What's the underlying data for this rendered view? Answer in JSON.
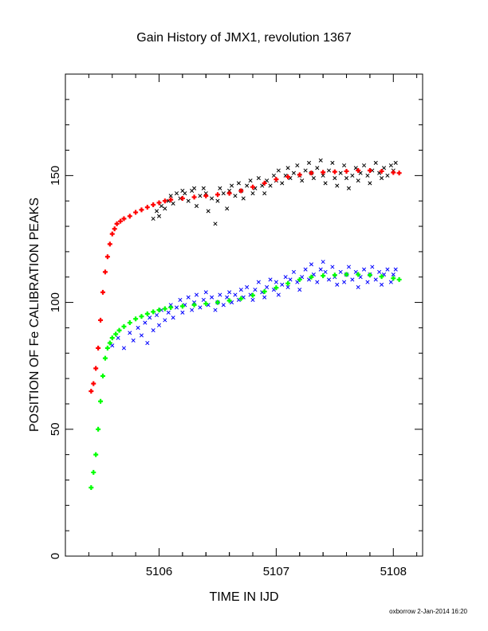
{
  "chart_data": {
    "type": "scatter",
    "title": "Gain History of JMX1, revolution 1367",
    "xlabel": "TIME IN IJD",
    "ylabel": "POSITION OF Fe CALIBRATION PEAKS",
    "xlim": [
      5105.2,
      5108.25
    ],
    "ylim": [
      0,
      190
    ],
    "xticks": [
      5106,
      5107,
      5108
    ],
    "yticks": [
      0,
      50,
      100,
      150
    ],
    "grid": false,
    "footer": "oxborrow  2-Jan-2014 16:20",
    "series": [
      {
        "role": "upper-peak-points",
        "marker": "x",
        "color": "#000000",
        "points": [
          [
            5105.95,
            133
          ],
          [
            5105.98,
            136
          ],
          [
            5106.0,
            134
          ],
          [
            5106.02,
            138
          ],
          [
            5106.05,
            137
          ],
          [
            5106.08,
            140
          ],
          [
            5106.1,
            142
          ],
          [
            5106.12,
            139
          ],
          [
            5106.15,
            143
          ],
          [
            5106.18,
            141
          ],
          [
            5106.2,
            144
          ],
          [
            5106.22,
            143
          ],
          [
            5106.25,
            140
          ],
          [
            5106.28,
            144
          ],
          [
            5106.3,
            145
          ],
          [
            5106.32,
            138
          ],
          [
            5106.35,
            142
          ],
          [
            5106.38,
            145
          ],
          [
            5106.4,
            143
          ],
          [
            5106.42,
            136
          ],
          [
            5106.45,
            141
          ],
          [
            5106.48,
            131
          ],
          [
            5106.5,
            140
          ],
          [
            5106.52,
            145
          ],
          [
            5106.55,
            143
          ],
          [
            5106.58,
            137
          ],
          [
            5106.6,
            144
          ],
          [
            5106.62,
            146
          ],
          [
            5106.65,
            142
          ],
          [
            5106.68,
            147
          ],
          [
            5106.7,
            144
          ],
          [
            5106.72,
            141
          ],
          [
            5106.75,
            146
          ],
          [
            5106.78,
            148
          ],
          [
            5106.8,
            143
          ],
          [
            5106.82,
            145
          ],
          [
            5106.85,
            149
          ],
          [
            5106.88,
            146
          ],
          [
            5106.9,
            143
          ],
          [
            5106.92,
            148
          ],
          [
            5106.95,
            146
          ],
          [
            5106.98,
            150
          ],
          [
            5107.0,
            148
          ],
          [
            5107.02,
            152
          ],
          [
            5107.05,
            147
          ],
          [
            5107.08,
            150
          ],
          [
            5107.1,
            153
          ],
          [
            5107.12,
            149
          ],
          [
            5107.15,
            151
          ],
          [
            5107.18,
            154
          ],
          [
            5107.2,
            150
          ],
          [
            5107.22,
            148
          ],
          [
            5107.25,
            152
          ],
          [
            5107.28,
            155
          ],
          [
            5107.3,
            151
          ],
          [
            5107.32,
            149
          ],
          [
            5107.35,
            153
          ],
          [
            5107.38,
            156
          ],
          [
            5107.4,
            150
          ],
          [
            5107.42,
            147
          ],
          [
            5107.45,
            152
          ],
          [
            5107.48,
            155
          ],
          [
            5107.5,
            149
          ],
          [
            5107.52,
            146
          ],
          [
            5107.55,
            151
          ],
          [
            5107.58,
            154
          ],
          [
            5107.6,
            149
          ],
          [
            5107.62,
            145
          ],
          [
            5107.65,
            150
          ],
          [
            5107.68,
            153
          ],
          [
            5107.7,
            148
          ],
          [
            5107.72,
            151
          ],
          [
            5107.75,
            154
          ],
          [
            5107.78,
            150
          ],
          [
            5107.8,
            147
          ],
          [
            5107.82,
            152
          ],
          [
            5107.85,
            155
          ],
          [
            5107.88,
            151
          ],
          [
            5107.9,
            149
          ],
          [
            5107.92,
            153
          ],
          [
            5107.95,
            150
          ],
          [
            5107.98,
            154
          ],
          [
            5108.0,
            152
          ],
          [
            5108.02,
            155
          ]
        ]
      },
      {
        "role": "upper-peak-fit",
        "marker": "+",
        "color": "#ff0000",
        "points": [
          [
            5105.42,
            65
          ],
          [
            5105.44,
            68
          ],
          [
            5105.46,
            74
          ],
          [
            5105.48,
            82
          ],
          [
            5105.5,
            93
          ],
          [
            5105.52,
            104
          ],
          [
            5105.54,
            112
          ],
          [
            5105.56,
            118
          ],
          [
            5105.58,
            123
          ],
          [
            5105.6,
            127
          ],
          [
            5105.62,
            129
          ],
          [
            5105.64,
            131
          ],
          [
            5105.67,
            132
          ],
          [
            5105.7,
            133
          ],
          [
            5105.75,
            134
          ],
          [
            5105.8,
            135.5
          ],
          [
            5105.85,
            136.5
          ],
          [
            5105.9,
            137.5
          ],
          [
            5105.95,
            138.5
          ],
          [
            5106.0,
            139.3
          ],
          [
            5106.05,
            140
          ],
          [
            5106.1,
            140.5
          ],
          [
            5106.2,
            141
          ],
          [
            5106.3,
            141.5
          ],
          [
            5106.4,
            142
          ],
          [
            5106.5,
            142.5
          ],
          [
            5106.6,
            143
          ],
          [
            5106.7,
            144
          ],
          [
            5106.8,
            145.5
          ],
          [
            5106.9,
            147
          ],
          [
            5107.0,
            148.5
          ],
          [
            5107.1,
            149.5
          ],
          [
            5107.2,
            150.3
          ],
          [
            5107.3,
            151
          ],
          [
            5107.4,
            151.3
          ],
          [
            5107.5,
            151.5
          ],
          [
            5107.6,
            151.7
          ],
          [
            5107.7,
            152
          ],
          [
            5107.8,
            152
          ],
          [
            5107.9,
            151.7
          ],
          [
            5108.0,
            151.2
          ],
          [
            5108.05,
            151
          ]
        ]
      },
      {
        "role": "lower-peak-points",
        "marker": "x",
        "color": "#0000ff",
        "points": [
          [
            5105.6,
            83
          ],
          [
            5105.65,
            86
          ],
          [
            5105.7,
            82
          ],
          [
            5105.75,
            88
          ],
          [
            5105.78,
            85
          ],
          [
            5105.82,
            90
          ],
          [
            5105.85,
            87
          ],
          [
            5105.88,
            92
          ],
          [
            5105.9,
            84
          ],
          [
            5105.92,
            94
          ],
          [
            5105.95,
            89
          ],
          [
            5105.98,
            95
          ],
          [
            5106.0,
            91
          ],
          [
            5106.02,
            97
          ],
          [
            5106.05,
            93
          ],
          [
            5106.08,
            96
          ],
          [
            5106.1,
            99
          ],
          [
            5106.12,
            94
          ],
          [
            5106.15,
            98
          ],
          [
            5106.18,
            101
          ],
          [
            5106.2,
            96
          ],
          [
            5106.22,
            99
          ],
          [
            5106.25,
            102
          ],
          [
            5106.28,
            97
          ],
          [
            5106.3,
            100
          ],
          [
            5106.32,
            103
          ],
          [
            5106.35,
            98
          ],
          [
            5106.38,
            101
          ],
          [
            5106.4,
            104
          ],
          [
            5106.42,
            99
          ],
          [
            5106.45,
            102
          ],
          [
            5106.48,
            97
          ],
          [
            5106.5,
            100
          ],
          [
            5106.52,
            103
          ],
          [
            5106.55,
            99
          ],
          [
            5106.58,
            102
          ],
          [
            5106.6,
            104
          ],
          [
            5106.62,
            100
          ],
          [
            5106.65,
            103
          ],
          [
            5106.68,
            101
          ],
          [
            5106.7,
            105
          ],
          [
            5106.72,
            102
          ],
          [
            5106.75,
            106
          ],
          [
            5106.78,
            103
          ],
          [
            5106.8,
            101
          ],
          [
            5106.82,
            105
          ],
          [
            5106.85,
            108
          ],
          [
            5106.88,
            104
          ],
          [
            5106.9,
            102
          ],
          [
            5106.92,
            106
          ],
          [
            5106.95,
            109
          ],
          [
            5106.98,
            105
          ],
          [
            5107.0,
            108
          ],
          [
            5107.02,
            103
          ],
          [
            5107.05,
            107
          ],
          [
            5107.08,
            110
          ],
          [
            5107.1,
            106
          ],
          [
            5107.12,
            109
          ],
          [
            5107.15,
            112
          ],
          [
            5107.18,
            108
          ],
          [
            5107.2,
            105
          ],
          [
            5107.22,
            110
          ],
          [
            5107.25,
            113
          ],
          [
            5107.28,
            109
          ],
          [
            5107.3,
            115
          ],
          [
            5107.32,
            111
          ],
          [
            5107.35,
            108
          ],
          [
            5107.38,
            113
          ],
          [
            5107.4,
            116
          ],
          [
            5107.42,
            112
          ],
          [
            5107.45,
            109
          ],
          [
            5107.48,
            114
          ],
          [
            5107.5,
            110
          ],
          [
            5107.52,
            107
          ],
          [
            5107.55,
            112
          ],
          [
            5107.58,
            108
          ],
          [
            5107.6,
            111
          ],
          [
            5107.62,
            114
          ],
          [
            5107.65,
            109
          ],
          [
            5107.68,
            112
          ],
          [
            5107.7,
            106
          ],
          [
            5107.72,
            110
          ],
          [
            5107.75,
            113
          ],
          [
            5107.78,
            108
          ],
          [
            5107.8,
            111
          ],
          [
            5107.82,
            114
          ],
          [
            5107.85,
            109
          ],
          [
            5107.88,
            112
          ],
          [
            5107.9,
            107
          ],
          [
            5107.92,
            111
          ],
          [
            5107.95,
            113
          ],
          [
            5107.98,
            108
          ],
          [
            5108.0,
            111
          ],
          [
            5108.02,
            113
          ]
        ]
      },
      {
        "role": "lower-peak-fit",
        "marker": "+",
        "color": "#00ff00",
        "points": [
          [
            5105.42,
            27
          ],
          [
            5105.44,
            33
          ],
          [
            5105.46,
            40
          ],
          [
            5105.48,
            50
          ],
          [
            5105.5,
            61
          ],
          [
            5105.52,
            71
          ],
          [
            5105.54,
            78
          ],
          [
            5105.56,
            82
          ],
          [
            5105.58,
            84
          ],
          [
            5105.6,
            86
          ],
          [
            5105.63,
            87.5
          ],
          [
            5105.66,
            89
          ],
          [
            5105.7,
            90.5
          ],
          [
            5105.75,
            92
          ],
          [
            5105.8,
            93.5
          ],
          [
            5105.85,
            94.5
          ],
          [
            5105.9,
            95.5
          ],
          [
            5105.95,
            96.3
          ],
          [
            5106.0,
            97
          ],
          [
            5106.05,
            97.5
          ],
          [
            5106.1,
            98
          ],
          [
            5106.2,
            98.5
          ],
          [
            5106.3,
            99
          ],
          [
            5106.4,
            99.5
          ],
          [
            5106.5,
            100
          ],
          [
            5106.6,
            100.7
          ],
          [
            5106.7,
            101.5
          ],
          [
            5106.8,
            102.8
          ],
          [
            5106.9,
            104.3
          ],
          [
            5107.0,
            105.8
          ],
          [
            5107.1,
            107.5
          ],
          [
            5107.2,
            109
          ],
          [
            5107.3,
            110
          ],
          [
            5107.4,
            110.5
          ],
          [
            5107.5,
            110.8
          ],
          [
            5107.6,
            111
          ],
          [
            5107.7,
            111
          ],
          [
            5107.8,
            110.8
          ],
          [
            5107.9,
            110.2
          ],
          [
            5108.0,
            109.5
          ],
          [
            5108.05,
            109
          ]
        ]
      }
    ]
  }
}
